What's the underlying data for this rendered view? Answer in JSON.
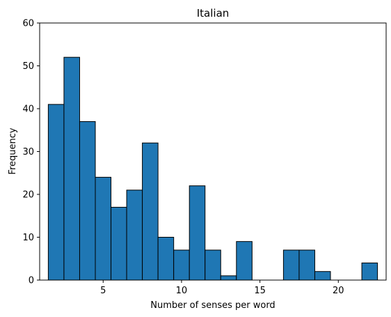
{
  "chart_data": {
    "type": "bar",
    "title": "Italian",
    "xlabel": "Number of senses per word",
    "ylabel": "Frequency",
    "xlim": [
      0.95,
      23.05
    ],
    "ylim": [
      0,
      60
    ],
    "x_ticks": [
      5,
      10,
      15,
      20
    ],
    "y_ticks": [
      0,
      10,
      20,
      30,
      40,
      50,
      60
    ],
    "grid": false,
    "bar_color": "#1f77b4",
    "edge_color": "#000000",
    "bins": [
      {
        "x0": 1.5,
        "x1": 2.5,
        "value": 41
      },
      {
        "x0": 2.5,
        "x1": 3.5,
        "value": 52
      },
      {
        "x0": 3.5,
        "x1": 4.5,
        "value": 37
      },
      {
        "x0": 4.5,
        "x1": 5.5,
        "value": 24
      },
      {
        "x0": 5.5,
        "x1": 6.5,
        "value": 17
      },
      {
        "x0": 6.5,
        "x1": 7.5,
        "value": 21
      },
      {
        "x0": 7.5,
        "x1": 8.5,
        "value": 32
      },
      {
        "x0": 8.5,
        "x1": 9.5,
        "value": 10
      },
      {
        "x0": 9.5,
        "x1": 10.5,
        "value": 7
      },
      {
        "x0": 10.5,
        "x1": 11.5,
        "value": 22
      },
      {
        "x0": 11.5,
        "x1": 12.5,
        "value": 7
      },
      {
        "x0": 12.5,
        "x1": 13.5,
        "value": 1
      },
      {
        "x0": 13.5,
        "x1": 14.5,
        "value": 9
      },
      {
        "x0": 14.5,
        "x1": 15.5,
        "value": 0
      },
      {
        "x0": 15.5,
        "x1": 16.5,
        "value": 0
      },
      {
        "x0": 16.5,
        "x1": 17.5,
        "value": 7
      },
      {
        "x0": 17.5,
        "x1": 18.5,
        "value": 7
      },
      {
        "x0": 18.5,
        "x1": 19.5,
        "value": 2
      },
      {
        "x0": 19.5,
        "x1": 20.5,
        "value": 0
      },
      {
        "x0": 20.5,
        "x1": 21.5,
        "value": 0
      },
      {
        "x0": 21.5,
        "x1": 22.5,
        "value": 4
      }
    ]
  }
}
